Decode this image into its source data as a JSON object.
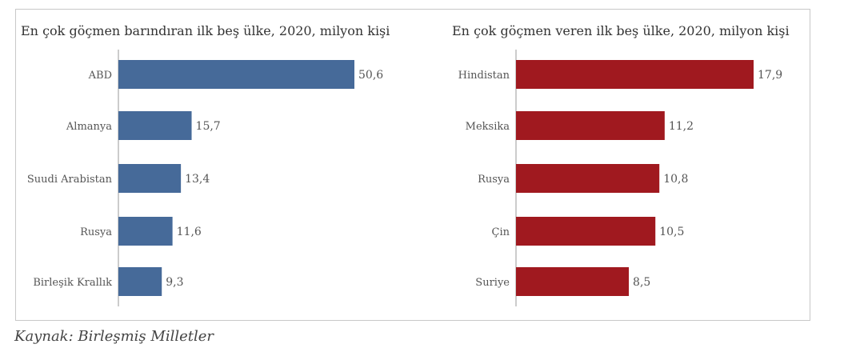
{
  "chart_data": [
    {
      "type": "bar",
      "orientation": "horizontal",
      "title": "En çok göçmen barındıran ilk beş ülke, 2020, milyon kişi",
      "categories": [
        "ABD",
        "Almanya",
        "Suudi Arabistan",
        "Rusya",
        "Birleşik Krallık"
      ],
      "values": [
        50.6,
        15.7,
        13.4,
        11.6,
        9.3
      ],
      "labels": [
        "50,6",
        "15,7",
        "13,4",
        "11,6",
        "9,3"
      ],
      "color": "#466a99",
      "xlabel": "",
      "ylabel": "",
      "xlim": [
        0,
        50.6
      ],
      "grid": false
    },
    {
      "type": "bar",
      "orientation": "horizontal",
      "title": "En çok göçmen veren ilk beş ülke, 2020, milyon kişi",
      "categories": [
        "Hindistan",
        "Meksika",
        "Rusya",
        "Çin",
        "Suriye"
      ],
      "values": [
        17.9,
        11.2,
        10.8,
        10.5,
        8.5
      ],
      "labels": [
        "17,9",
        "11,2",
        "10,8",
        "10,5",
        "8,5"
      ],
      "color": "#a0191f",
      "xlabel": "",
      "ylabel": "",
      "xlim": [
        0,
        17.9
      ],
      "grid": false
    }
  ],
  "source": "Kaynak: Birleşmiş Milletler"
}
